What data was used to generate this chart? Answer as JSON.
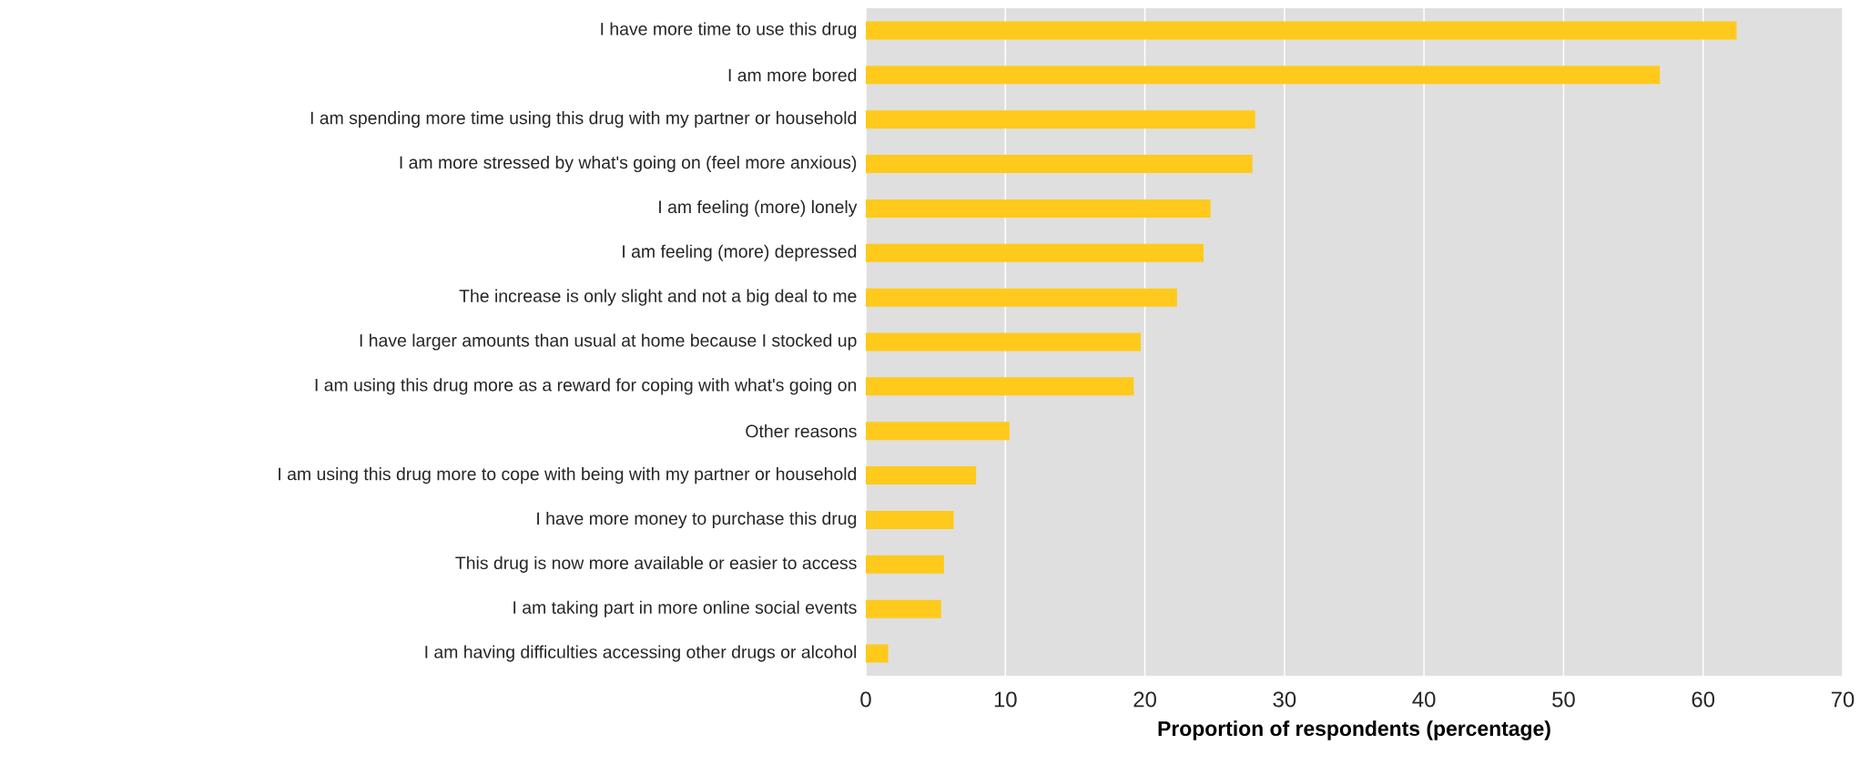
{
  "chart_data": {
    "type": "bar",
    "orientation": "horizontal",
    "xlabel": "Proportion of respondents (percentage)",
    "categories": [
      "I have more time to use this drug",
      "I am more bored",
      "I am spending more time using this drug with my partner or household",
      "I am more stressed by what's going on (feel more anxious)",
      "I am feeling (more) lonely",
      "I am feeling (more) depressed",
      "The increase is only slight and not a big deal to me",
      "I have larger amounts than usual at home because I stocked up",
      "I am using this drug more as a reward for coping with what's going on",
      "Other reasons",
      "I am using this drug more to cope with being with my partner or household",
      "I have more money to purchase this drug",
      "This drug is now more available or easier to access",
      "I am taking part in more online social events",
      "I am having difficulties accessing other drugs or alcohol"
    ],
    "values": [
      62.4,
      56.9,
      27.9,
      27.7,
      24.7,
      24.2,
      22.3,
      19.7,
      19.2,
      10.3,
      7.9,
      6.3,
      5.6,
      5.4,
      1.6
    ],
    "color": "#ffca1b",
    "xlim": [
      0,
      70
    ],
    "xticks": [
      0,
      10,
      20,
      30,
      40,
      50,
      60,
      70
    ],
    "grid": "x"
  }
}
